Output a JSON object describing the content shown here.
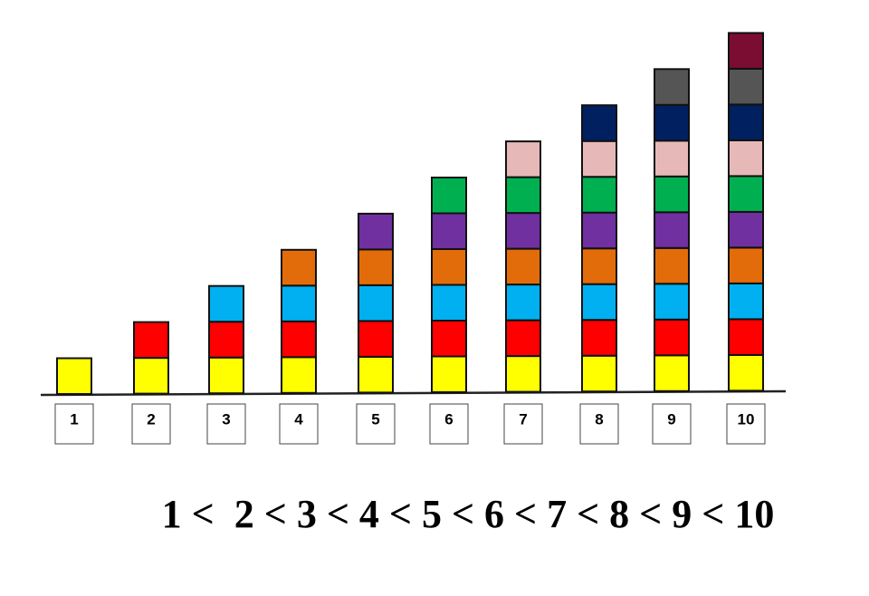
{
  "columns": [
    {
      "label": "1",
      "blocks": 1
    },
    {
      "label": "2",
      "blocks": 2
    },
    {
      "label": "3",
      "blocks": 3
    },
    {
      "label": "4",
      "blocks": 4
    },
    {
      "label": "5",
      "blocks": 5
    },
    {
      "label": "6",
      "blocks": 6
    },
    {
      "label": "7",
      "blocks": 7
    },
    {
      "label": "8",
      "blocks": 8
    },
    {
      "label": "9",
      "blocks": 9
    },
    {
      "label": "10",
      "blocks": 10
    }
  ],
  "block_colors": [
    "#ffff00",
    "#ff0000",
    "#00b0f0",
    "#e36c0a",
    "#7030a0",
    "#00b050",
    "#e6b9b8",
    "#002060",
    "#555555",
    "#7b0c32"
  ],
  "comparison": "1 <  2 < 3 < 4 < 5 < 6 < 7 < 8 < 9 < 10"
}
